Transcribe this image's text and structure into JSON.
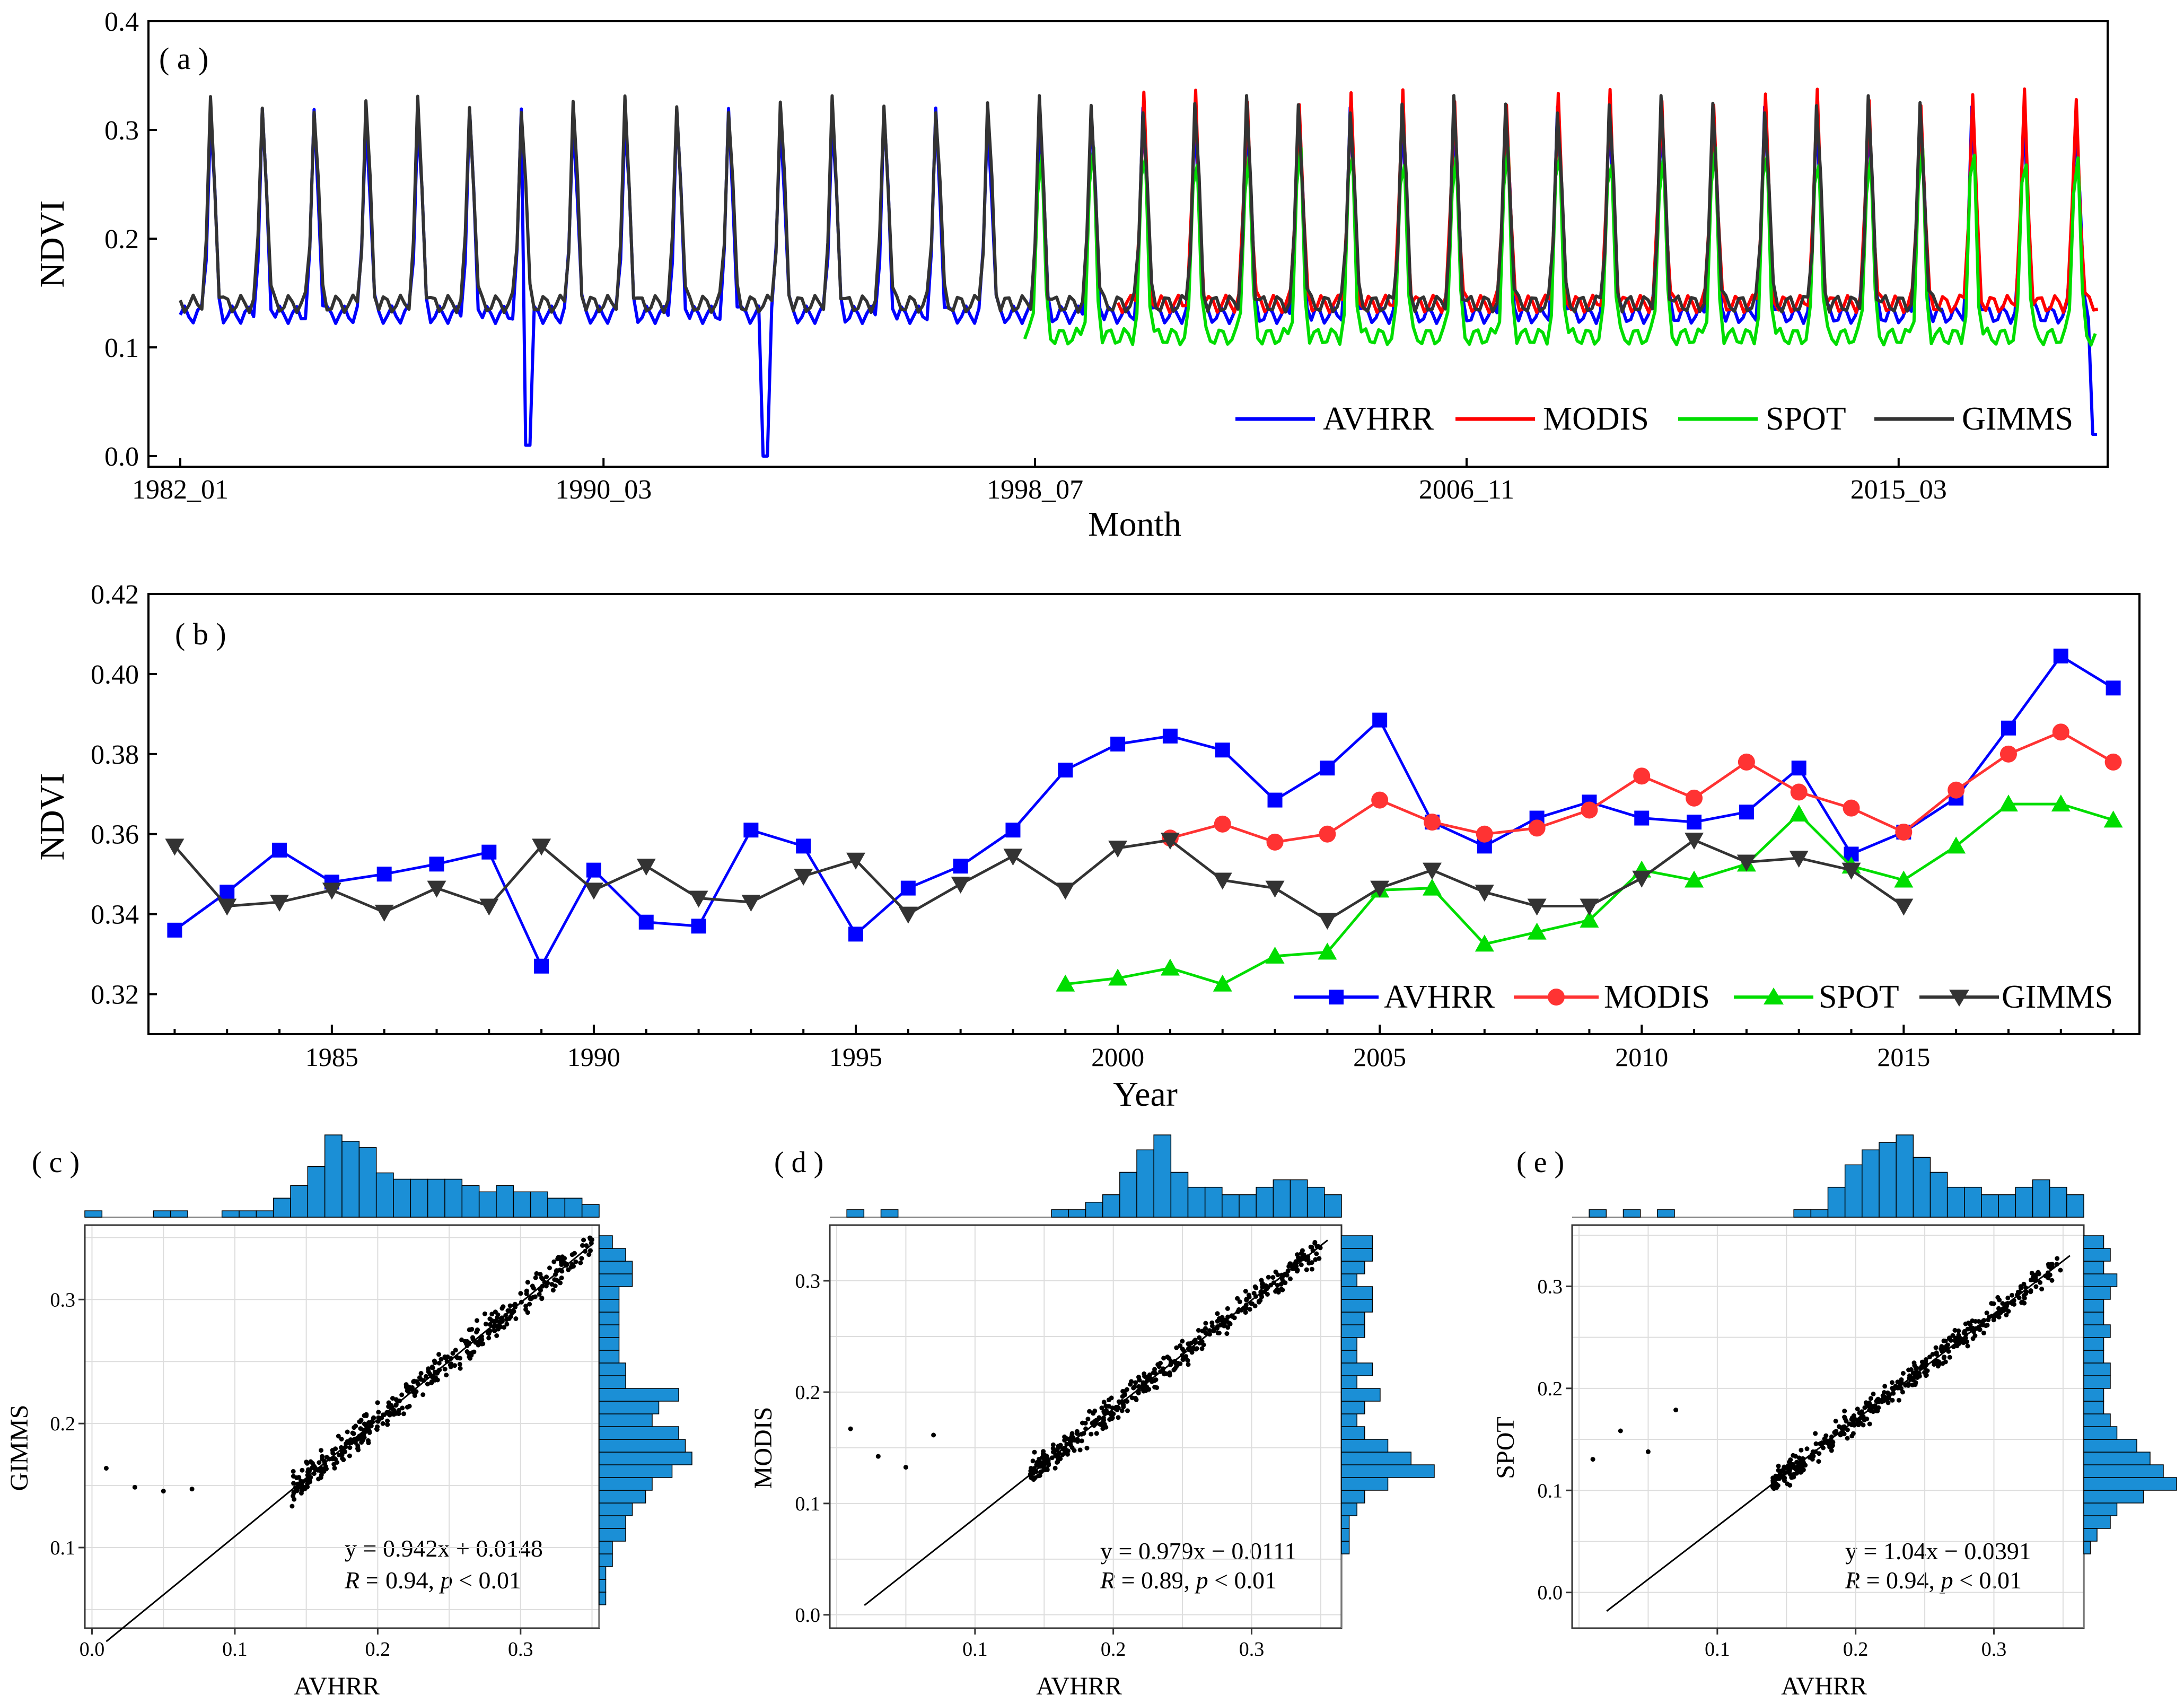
{
  "colors": {
    "AVHRR": "#0000ff",
    "MODIS": "#ff0000",
    "SPOT": "#00dd00",
    "GIMMS": "#333333",
    "hist": "#1b8fd6",
    "frame": "#000000",
    "grid": "#dddddd"
  },
  "chart_data": [
    {
      "id": "a",
      "type": "line",
      "panel_label": "( a )",
      "xlabel": "Month",
      "ylabel": "NDVI",
      "x_ticks": [
        "1982_01",
        "1990_03",
        "1998_07",
        "2006_11",
        "2015_03"
      ],
      "x_range": [
        1982.0,
        2019.0
      ],
      "ylim": [
        0.0,
        0.4
      ],
      "y_ticks": [
        "0.0",
        "0.1",
        "0.2",
        "0.3",
        "0.4"
      ],
      "legend": [
        "AVHRR",
        "MODIS",
        "SPOT",
        "GIMMS"
      ],
      "series": [
        {
          "name": "AVHRR",
          "start": 1982.0,
          "end": 2019.0,
          "min": 0.13,
          "max": 0.32,
          "anomalies": [
            {
              "x": 1988.7,
              "y": 0.01
            },
            {
              "x": 1993.3,
              "y": 0.0
            },
            {
              "x": 2018.95,
              "y": 0.02
            }
          ]
        },
        {
          "name": "MODIS",
          "start": 2000.1,
          "end": 2019.0,
          "min": 0.14,
          "max": 0.33
        },
        {
          "name": "SPOT",
          "start": 1998.3,
          "end": 2019.0,
          "min": 0.11,
          "max": 0.3
        },
        {
          "name": "GIMMS",
          "start": 1982.0,
          "end": 2016.0,
          "min": 0.14,
          "max": 0.33
        }
      ]
    },
    {
      "id": "b",
      "type": "line",
      "panel_label": "( b )",
      "xlabel": "Year",
      "ylabel": "NDVI",
      "x_ticks": [
        "1985",
        "1990",
        "1995",
        "2000",
        "2005",
        "2010",
        "2015"
      ],
      "x_range": [
        1981.5,
        2019.5
      ],
      "ylim": [
        0.31,
        0.42
      ],
      "y_ticks": [
        "0.32",
        "0.34",
        "0.36",
        "0.38",
        "0.40",
        "0.42"
      ],
      "legend": [
        "AVHRR",
        "MODIS",
        "SPOT",
        "GIMMS"
      ],
      "series": [
        {
          "name": "AVHRR",
          "marker": "square",
          "x": [
            1982,
            1983,
            1984,
            1985,
            1986,
            1987,
            1988,
            1989,
            1990,
            1991,
            1992,
            1993,
            1994,
            1995,
            1996,
            1997,
            1998,
            1999,
            2000,
            2001,
            2002,
            2003,
            2004,
            2005,
            2006,
            2007,
            2008,
            2009,
            2010,
            2011,
            2012,
            2013,
            2014,
            2015,
            2016,
            2017,
            2018,
            2019
          ],
          "values": [
            0.336,
            0.3455,
            0.356,
            0.348,
            0.35,
            0.3525,
            0.3555,
            0.327,
            0.351,
            0.338,
            0.337,
            0.361,
            0.357,
            0.335,
            0.3465,
            0.352,
            0.361,
            0.376,
            0.3825,
            0.3845,
            0.381,
            0.3685,
            0.3765,
            0.3885,
            0.363,
            0.357,
            0.364,
            0.368,
            0.364,
            0.363,
            0.3655,
            0.3765,
            0.355,
            0.3605,
            0.369,
            0.3865,
            0.4045,
            0.3965
          ]
        },
        {
          "name": "MODIS",
          "marker": "circle",
          "x": [
            2001,
            2002,
            2003,
            2004,
            2005,
            2006,
            2007,
            2008,
            2009,
            2010,
            2011,
            2012,
            2013,
            2014,
            2015,
            2016,
            2017,
            2018,
            2019
          ],
          "values": [
            0.359,
            0.3625,
            0.358,
            0.36,
            0.3685,
            0.363,
            0.36,
            0.3615,
            0.366,
            0.3745,
            0.369,
            0.378,
            0.3705,
            0.3665,
            0.3605,
            0.371,
            0.38,
            0.3855,
            0.378
          ]
        },
        {
          "name": "SPOT",
          "marker": "triangle-up",
          "x": [
            1999,
            2000,
            2001,
            2002,
            2003,
            2004,
            2005,
            2006,
            2007,
            2008,
            2009,
            2010,
            2011,
            2012,
            2013,
            2014,
            2015,
            2016,
            2017,
            2018,
            2019
          ],
          "values": [
            0.3225,
            0.324,
            0.3265,
            0.3225,
            0.3295,
            0.3305,
            0.346,
            0.3465,
            0.3325,
            0.3355,
            0.3385,
            0.351,
            0.3485,
            0.3525,
            0.365,
            0.352,
            0.3485,
            0.357,
            0.3675,
            0.3675,
            0.3635
          ]
        },
        {
          "name": "GIMMS",
          "marker": "triangle-down",
          "x": [
            1982,
            1983,
            1984,
            1985,
            1986,
            1987,
            1988,
            1989,
            1990,
            1991,
            1992,
            1993,
            1994,
            1995,
            1996,
            1997,
            1998,
            1999,
            2000,
            2001,
            2002,
            2003,
            2004,
            2005,
            2006,
            2007,
            2008,
            2009,
            2010,
            2011,
            2012,
            2013,
            2014,
            2015
          ],
          "values": [
            0.357,
            0.342,
            0.343,
            0.346,
            0.3405,
            0.3465,
            0.342,
            0.357,
            0.346,
            0.352,
            0.344,
            0.343,
            0.3495,
            0.3535,
            0.34,
            0.3475,
            0.3545,
            0.346,
            0.3565,
            0.3585,
            0.3485,
            0.3465,
            0.3385,
            0.3465,
            0.351,
            0.3455,
            0.342,
            0.342,
            0.349,
            0.3585,
            0.353,
            0.354,
            0.351,
            0.342
          ]
        }
      ]
    },
    {
      "id": "c",
      "type": "scatter",
      "panel_label": "( c )",
      "xlabel": "AVHRR",
      "ylabel": "GIMMS",
      "x_ticks": [
        "0.0",
        "0.1",
        "0.2",
        "0.3"
      ],
      "xlim": [
        -0.005,
        0.355
      ],
      "y_ticks": [
        "0.1",
        "0.2",
        "0.3"
      ],
      "ylim": [
        0.035,
        0.36
      ],
      "slope": 0.942,
      "intercept": 0.0148,
      "fit_range": [
        0.01,
        0.35
      ],
      "equation": "y = 0.942x + 0.0148",
      "stats_r": "R",
      "stats_mid": " = 0.94, ",
      "stats_p": "p",
      "stats_end": " < 0.01",
      "top_hist": [
        1,
        0,
        0,
        0,
        1,
        1,
        0,
        0,
        1,
        1,
        1,
        3,
        5,
        8,
        13,
        12,
        11,
        7,
        6,
        6,
        6,
        6,
        5,
        4,
        5,
        4,
        4,
        3,
        3,
        2
      ],
      "right_hist": [
        0,
        1,
        1,
        1,
        2,
        2,
        4,
        4,
        5,
        7,
        8,
        11,
        14,
        13,
        12,
        8,
        9,
        12,
        4,
        4,
        3,
        3,
        3,
        3,
        3,
        3,
        5,
        5,
        4,
        2
      ]
    },
    {
      "id": "d",
      "type": "scatter",
      "panel_label": "( d )",
      "xlabel": "AVHRR",
      "ylabel": "MODIS",
      "x_ticks": [
        "0.1",
        "0.2",
        "0.3"
      ],
      "xlim": [
        -0.005,
        0.365
      ],
      "y_ticks": [
        "0.0",
        "0.1",
        "0.2",
        "0.3"
      ],
      "ylim": [
        -0.012,
        0.35
      ],
      "slope": 0.979,
      "intercept": -0.0111,
      "fit_range": [
        0.02,
        0.355
      ],
      "equation": "y = 0.979x − 0.0111",
      "stats_r": "R",
      "stats_mid": " = 0.89, ",
      "stats_p": "p",
      "stats_end": " < 0.01",
      "top_hist": [
        0,
        1,
        0,
        1,
        0,
        0,
        0,
        0,
        0,
        0,
        0,
        0,
        0,
        1,
        1,
        2,
        3,
        6,
        9,
        11,
        6,
        4,
        4,
        3,
        3,
        4,
        5,
        5,
        4,
        3
      ],
      "right_hist": [
        0,
        0,
        0,
        0,
        0,
        1,
        1,
        1,
        2,
        3,
        6,
        12,
        9,
        6,
        3,
        2,
        3,
        5,
        2,
        4,
        2,
        2,
        3,
        3,
        4,
        4,
        2,
        3,
        4,
        4
      ]
    },
    {
      "id": "e",
      "type": "scatter",
      "panel_label": "( e )",
      "xlabel": "AVHRR",
      "ylabel": "SPOT",
      "x_ticks": [
        "0.1",
        "0.2",
        "0.3"
      ],
      "xlim": [
        -0.005,
        0.365
      ],
      "y_ticks": [
        "0.0",
        "0.1",
        "0.2",
        "0.3"
      ],
      "ylim": [
        -0.035,
        0.36
      ],
      "slope": 1.04,
      "intercept": -0.0391,
      "fit_range": [
        0.02,
        0.355
      ],
      "equation": "y = 1.04x − 0.0391",
      "stats_r": "R",
      "stats_mid": " = 0.94, ",
      "stats_p": "p",
      "stats_end": " < 0.01",
      "top_hist": [
        0,
        1,
        0,
        1,
        0,
        1,
        0,
        0,
        0,
        0,
        0,
        0,
        0,
        1,
        1,
        4,
        7,
        9,
        10,
        11,
        8,
        6,
        4,
        4,
        3,
        3,
        4,
        5,
        4,
        3
      ],
      "right_hist": [
        0,
        0,
        0,
        0,
        0,
        1,
        2,
        4,
        5,
        9,
        14,
        12,
        10,
        8,
        5,
        4,
        3,
        3,
        4,
        4,
        3,
        3,
        4,
        3,
        3,
        4,
        5,
        3,
        4,
        3
      ]
    }
  ]
}
